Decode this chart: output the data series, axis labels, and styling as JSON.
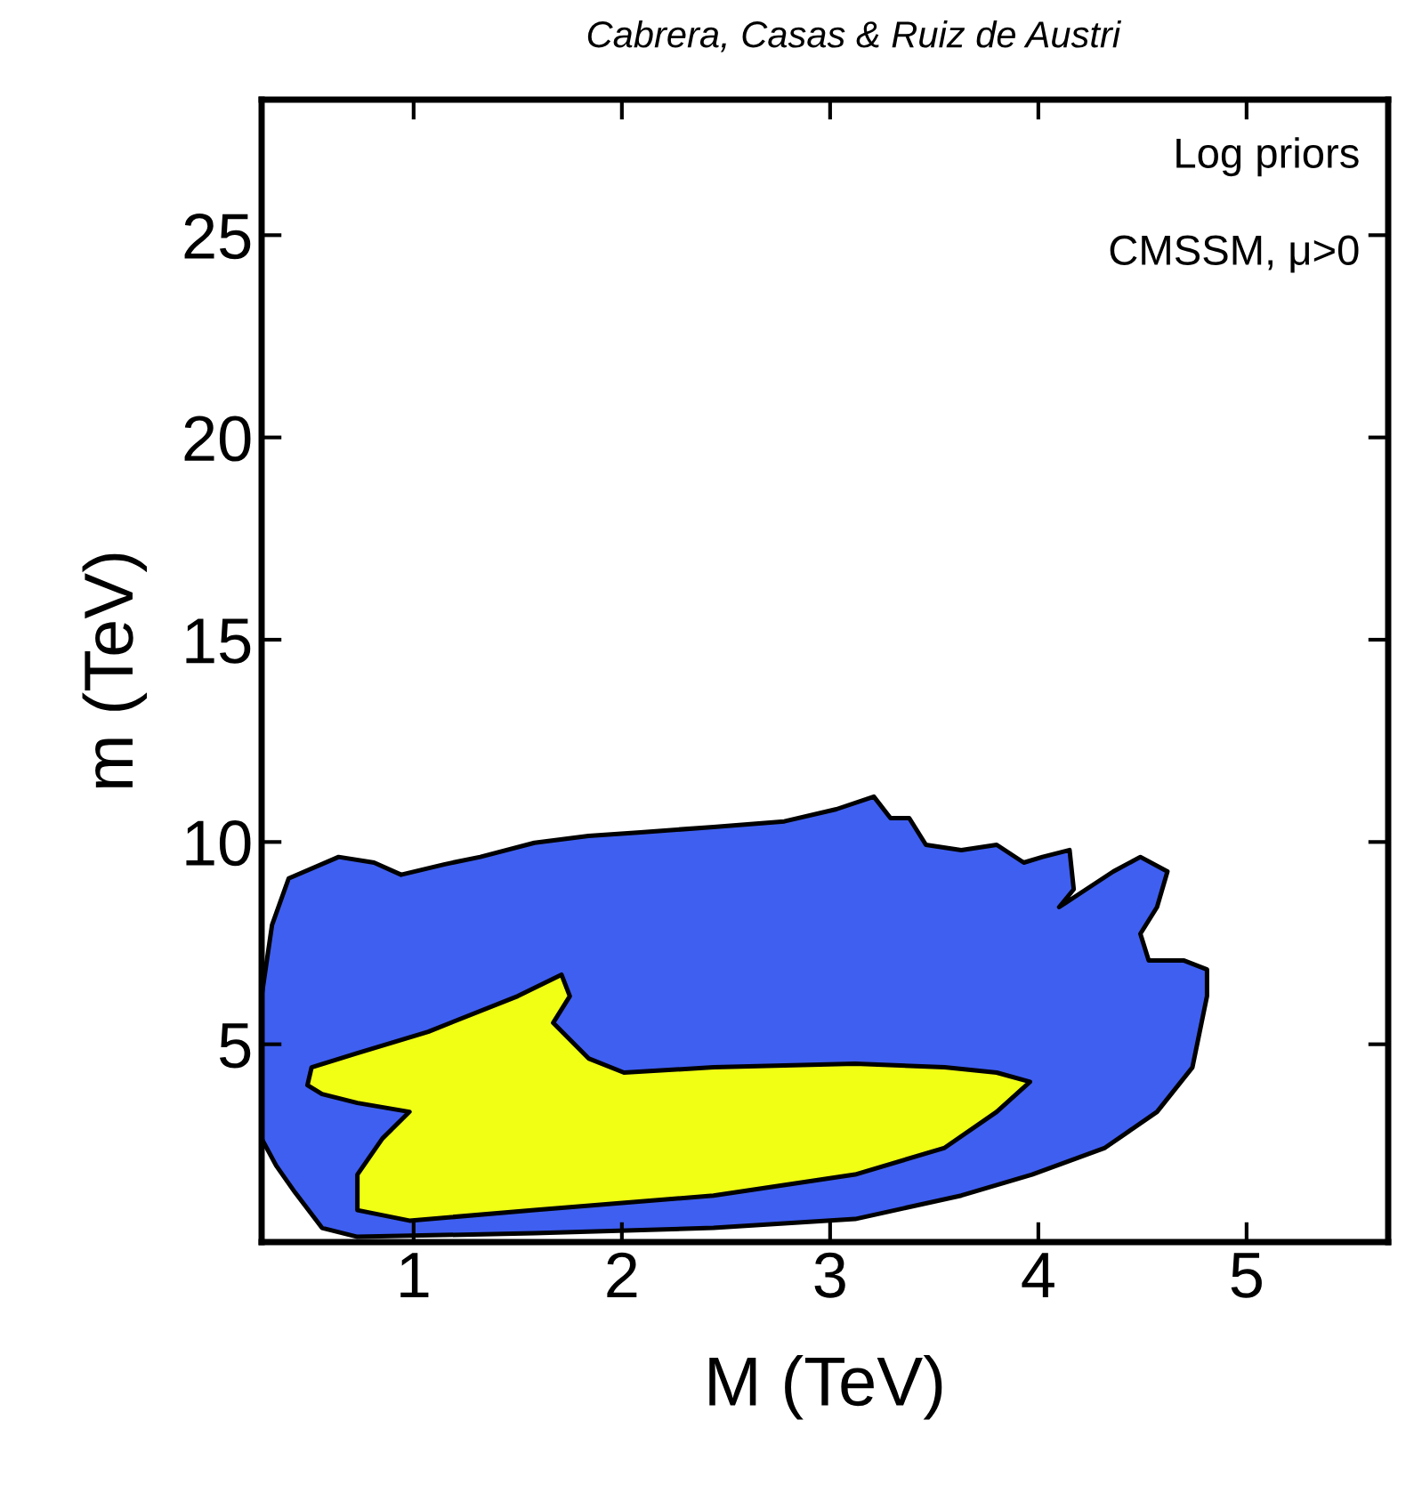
{
  "chart_data": {
    "type": "area",
    "xlabel": "M (TeV)",
    "ylabel": "m (TeV)",
    "annotations": [
      "Cabrera, Casas & Ruiz de Austri",
      "Log priors",
      "CMSSM, μ>0"
    ],
    "xlim": [
      0.27,
      5.68
    ],
    "ylim": [
      0.11,
      28.35
    ],
    "xticks": [
      1,
      2,
      3,
      4,
      5
    ],
    "yticks": [
      5,
      10,
      15,
      20,
      25
    ],
    "grid": false,
    "series": [
      {
        "color": "#3f5ff0",
        "x": [
          0.27,
          0.27,
          0.32,
          0.4,
          0.64,
          0.81,
          0.94,
          1.15,
          1.32,
          1.58,
          1.84,
          2.09,
          2.44,
          2.78,
          3.03,
          3.21,
          3.29,
          3.38,
          3.46,
          3.63,
          3.8,
          3.93,
          4.02,
          4.15,
          4.17,
          4.1,
          4.23,
          4.36,
          4.49,
          4.62,
          4.57,
          4.49,
          4.53,
          4.7,
          4.81,
          4.81,
          4.74,
          4.57,
          4.32,
          3.97,
          3.63,
          3.12,
          2.44,
          1.58,
          0.73,
          0.56,
          0.43,
          0.34
        ],
        "values": [
          2.67,
          6.19,
          7.95,
          9.1,
          9.63,
          9.49,
          9.19,
          9.45,
          9.63,
          9.98,
          10.15,
          10.24,
          10.37,
          10.51,
          10.81,
          11.12,
          10.59,
          10.59,
          9.93,
          9.8,
          9.93,
          9.49,
          9.63,
          9.8,
          8.83,
          8.39,
          8.83,
          9.27,
          9.63,
          9.27,
          8.39,
          7.73,
          7.07,
          7.07,
          6.85,
          6.19,
          4.43,
          3.33,
          2.44,
          1.78,
          1.26,
          0.68,
          0.46,
          0.33,
          0.24,
          0.46,
          1.34,
          2.0
        ]
      },
      {
        "color": "#f0ff14",
        "x": [
          0.49,
          0.51,
          0.73,
          1.07,
          1.5,
          1.71,
          1.75,
          1.67,
          1.84,
          2.01,
          2.44,
          3.12,
          3.55,
          3.8,
          3.96,
          3.8,
          3.55,
          3.12,
          2.44,
          1.58,
          0.98,
          0.73,
          0.73,
          0.85,
          0.98,
          0.73,
          0.56
        ],
        "values": [
          3.99,
          4.43,
          4.78,
          5.31,
          6.19,
          6.72,
          6.19,
          5.53,
          4.65,
          4.3,
          4.43,
          4.52,
          4.43,
          4.3,
          4.07,
          3.33,
          2.44,
          1.78,
          1.26,
          0.9,
          0.64,
          0.9,
          1.78,
          2.67,
          3.33,
          3.55,
          3.77
        ]
      }
    ]
  }
}
